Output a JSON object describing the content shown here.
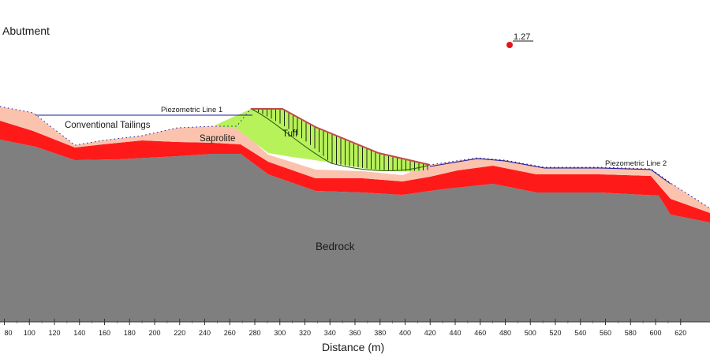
{
  "labels": {
    "corner": "Abutment",
    "conventional_tailings": "Conventional Tailings",
    "saprolite": "Saprolite",
    "tuff": "Tuff",
    "bedrock": "Bedrock",
    "piezo1": "Piezometric Line 1",
    "piezo2": "Piezometric Line 2",
    "factor_of_safety": "1.27"
  },
  "axis": {
    "title": "Distance (m)",
    "ticks": [
      80,
      100,
      120,
      140,
      160,
      180,
      200,
      220,
      240,
      260,
      280,
      300,
      320,
      340,
      360,
      380,
      400,
      420,
      440,
      460,
      480,
      500,
      520,
      540,
      560,
      580,
      600,
      620
    ],
    "first_tick_label": "80",
    "first_tick_at_left_edge": true,
    "ticks_left_of_80": 1
  },
  "colors": {
    "bedrock": "#7f7f7f",
    "red_layer": "#ff1a1a",
    "saprolite": "#fbc3ad",
    "tuff": "#b8f25a",
    "slip_line": "#c24a4a",
    "piezo": "#1a1aa0",
    "fos_marker": "#e8131b"
  }
}
